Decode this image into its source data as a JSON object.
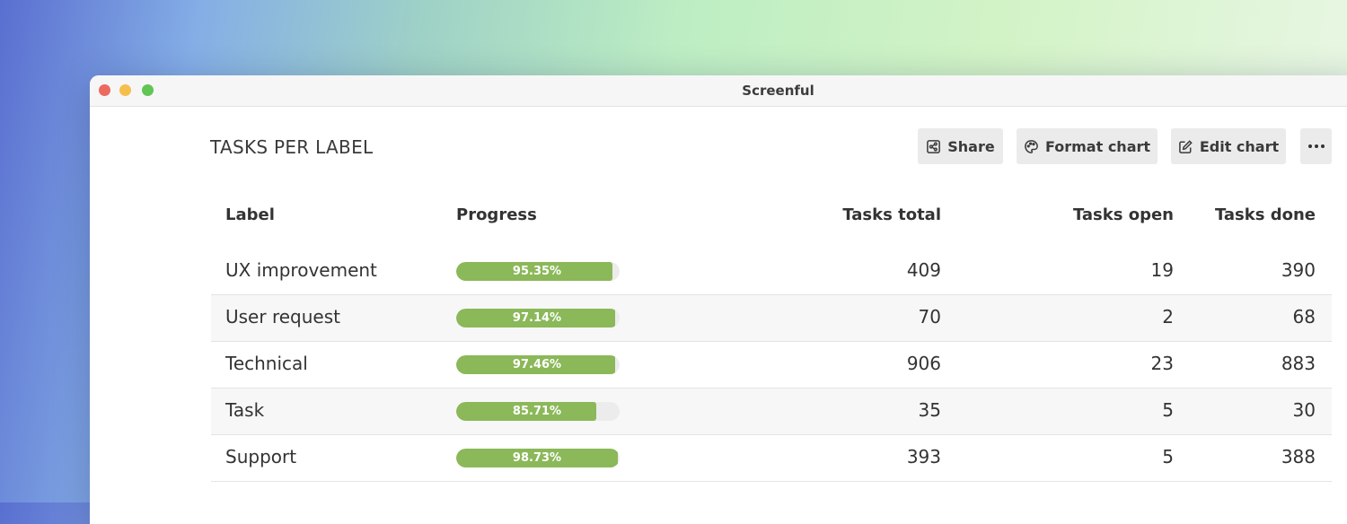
{
  "window": {
    "title": "Screenful"
  },
  "page": {
    "title": "TASKS PER LABEL"
  },
  "toolbar": {
    "share_label": "Share",
    "format_label": "Format chart",
    "edit_label": "Edit chart",
    "more_icon": "more-horizontal-icon"
  },
  "table": {
    "headers": [
      "Label",
      "Progress",
      "Tasks total",
      "Tasks open",
      "Tasks done"
    ],
    "rows": [
      {
        "label": "UX improvement",
        "progress": 95.35,
        "progress_text": "95.35%",
        "total": "409",
        "open": "19",
        "done": "390"
      },
      {
        "label": "User request",
        "progress": 97.14,
        "progress_text": "97.14%",
        "total": "70",
        "open": "2",
        "done": "68"
      },
      {
        "label": "Technical",
        "progress": 97.46,
        "progress_text": "97.46%",
        "total": "906",
        "open": "23",
        "done": "883"
      },
      {
        "label": "Task",
        "progress": 85.71,
        "progress_text": "85.71%",
        "total": "35",
        "open": "5",
        "done": "30"
      },
      {
        "label": "Support",
        "progress": 98.73,
        "progress_text": "98.73%",
        "total": "393",
        "open": "5",
        "done": "388"
      }
    ]
  },
  "colors": {
    "progress_fill": "#8bb859",
    "progress_track": "#ececec"
  }
}
